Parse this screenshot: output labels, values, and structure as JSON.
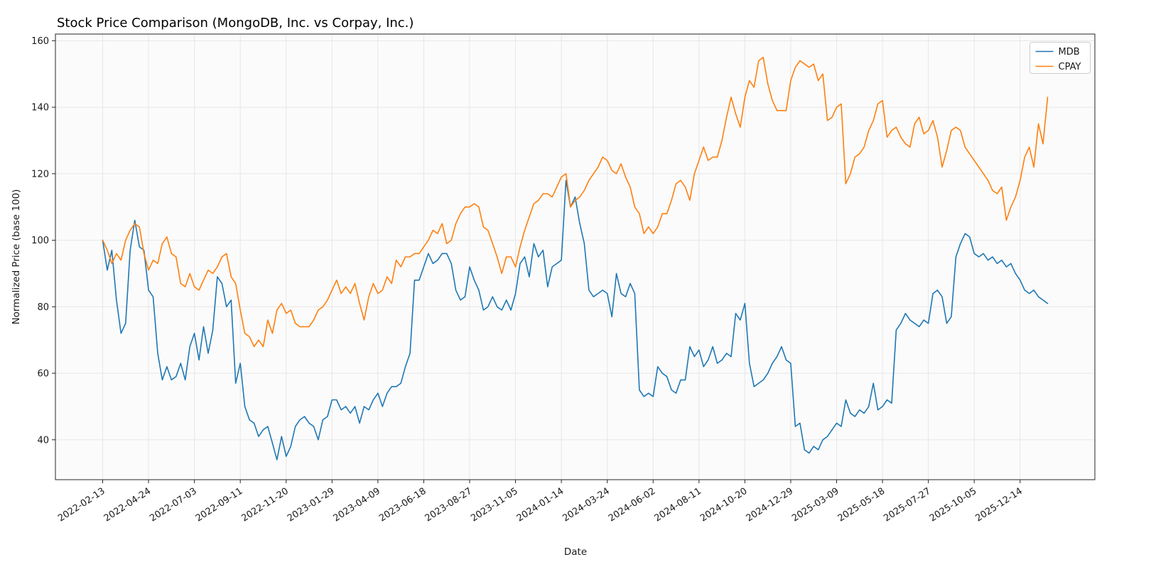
{
  "chart_data": {
    "type": "line",
    "title": "Stock Price Comparison (MongoDB, Inc. vs Corpay, Inc.)",
    "xlabel": "Date",
    "ylabel": "Normalized Price (base 100)",
    "ylim": [
      28,
      162
    ],
    "yticks": [
      40,
      60,
      80,
      100,
      120,
      140,
      160
    ],
    "grid": true,
    "legend_position": "upper right",
    "x_margin_frac": 0.05,
    "x_tick_indices": [
      0,
      10,
      20,
      30,
      40,
      50,
      60,
      70,
      80,
      90,
      100,
      110,
      120,
      130,
      140,
      150,
      160,
      170,
      180,
      190,
      200
    ],
    "x_tick_labels": [
      "2022-02-13",
      "2022-04-24",
      "2022-07-03",
      "2022-09-11",
      "2022-11-20",
      "2023-01-29",
      "2023-04-09",
      "2023-06-18",
      "2023-08-27",
      "2023-11-05",
      "2024-01-14",
      "2024-03-24",
      "2024-06-02",
      "2024-08-11",
      "2024-10-20",
      "2024-12-29",
      "2025-03-09",
      "2025-05-18",
      "2025-07-27",
      "2025-10-05",
      "2025-12-14"
    ],
    "series": [
      {
        "name": "MDB",
        "color": "#1f77b4",
        "values": [
          100,
          91,
          97,
          82,
          72,
          75,
          97,
          106,
          98,
          97,
          85,
          83,
          66,
          58,
          62,
          58,
          59,
          63,
          58,
          68,
          72,
          64,
          74,
          66,
          73,
          89,
          87,
          80,
          82,
          57,
          63,
          50,
          46,
          45,
          41,
          43,
          44,
          39,
          34,
          41,
          35,
          38,
          44,
          46,
          47,
          45,
          44,
          40,
          46,
          47,
          52,
          52,
          49,
          50,
          48,
          50,
          45,
          50,
          49,
          52,
          54,
          50,
          54,
          56,
          56,
          57,
          62,
          66,
          88,
          88,
          92,
          96,
          93,
          94,
          96,
          96,
          93,
          85,
          82,
          83,
          92,
          88,
          85,
          79,
          80,
          83,
          80,
          79,
          82,
          79,
          84,
          93,
          95,
          89,
          99,
          95,
          97,
          86,
          92,
          93,
          94,
          118,
          110,
          113,
          105,
          99,
          85,
          83,
          84,
          85,
          84,
          77,
          90,
          84,
          83,
          87,
          84,
          55,
          53,
          54,
          53,
          62,
          60,
          59,
          55,
          54,
          58,
          58,
          68,
          65,
          67,
          62,
          64,
          68,
          63,
          64,
          66,
          65,
          78,
          76,
          81,
          63,
          56,
          57,
          58,
          60,
          63,
          65,
          68,
          64,
          63,
          44,
          45,
          37,
          36,
          38,
          37,
          40,
          41,
          43,
          45,
          44,
          52,
          48,
          47,
          49,
          48,
          50,
          57,
          49,
          50,
          52,
          51,
          73,
          75,
          78,
          76,
          75,
          74,
          76,
          75,
          84,
          85,
          83,
          75,
          77,
          95,
          99,
          102,
          101,
          96,
          95,
          96,
          94,
          95,
          93,
          94,
          92,
          93,
          90,
          88,
          85,
          84,
          85,
          83,
          82,
          81
        ]
      },
      {
        "name": "CPAY",
        "color": "#ff7f0e",
        "values": [
          100,
          97,
          93,
          96,
          94,
          100,
          103,
          105,
          104,
          96,
          91,
          94,
          93,
          99,
          101,
          96,
          95,
          87,
          86,
          90,
          86,
          85,
          88,
          91,
          90,
          92,
          95,
          96,
          89,
          87,
          79,
          72,
          71,
          68,
          70,
          68,
          76,
          72,
          79,
          81,
          78,
          79,
          75,
          74,
          74,
          74,
          76,
          79,
          80,
          82,
          85,
          88,
          84,
          86,
          84,
          87,
          81,
          76,
          83,
          87,
          84,
          85,
          89,
          87,
          94,
          92,
          95,
          95,
          96,
          96,
          98,
          100,
          103,
          102,
          105,
          99,
          100,
          105,
          108,
          110,
          110,
          111,
          110,
          104,
          103,
          99,
          95,
          90,
          95,
          95,
          92,
          98,
          103,
          107,
          111,
          112,
          114,
          114,
          113,
          116,
          119,
          120,
          110,
          112,
          113,
          115,
          118,
          120,
          122,
          125,
          124,
          121,
          120,
          123,
          119,
          116,
          110,
          108,
          102,
          104,
          102,
          104,
          108,
          108,
          112,
          117,
          118,
          116,
          112,
          120,
          124,
          128,
          124,
          125,
          125,
          130,
          137,
          143,
          138,
          134,
          143,
          148,
          146,
          154,
          155,
          147,
          142,
          139,
          139,
          139,
          148,
          152,
          154,
          153,
          152,
          153,
          148,
          150,
          136,
          137,
          140,
          141,
          117,
          120,
          125,
          126,
          128,
          133,
          136,
          141,
          142,
          131,
          133,
          134,
          131,
          129,
          128,
          135,
          137,
          132,
          133,
          136,
          131,
          122,
          127,
          133,
          134,
          133,
          128,
          126,
          124,
          122,
          120,
          118,
          115,
          114,
          116,
          106,
          110,
          113,
          118,
          125,
          128,
          122,
          135,
          129,
          143
        ]
      }
    ]
  }
}
